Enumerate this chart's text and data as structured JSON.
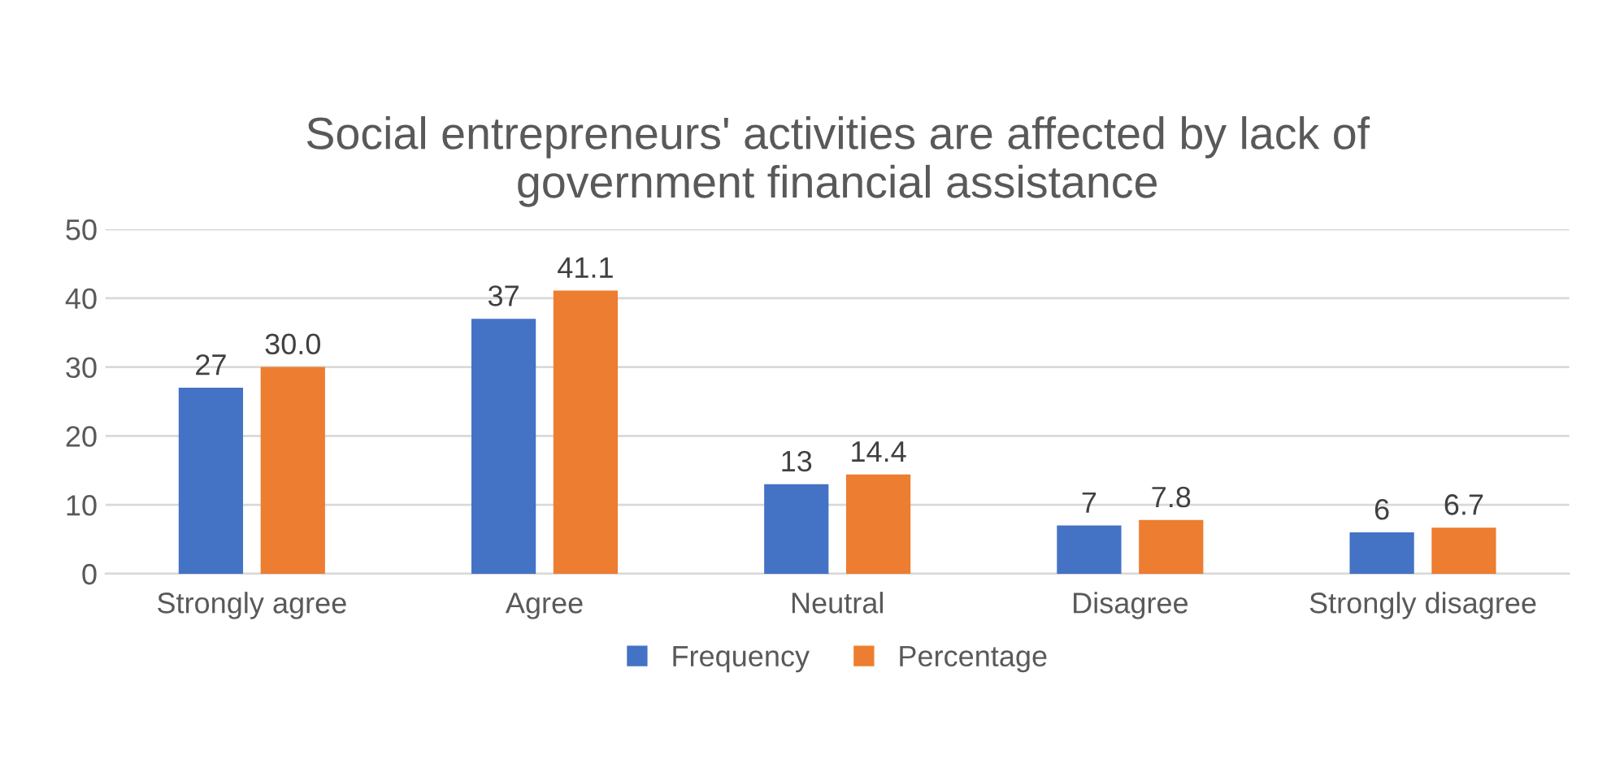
{
  "chart_data": {
    "type": "bar",
    "title": "Social entrepreneurs' activities are affected by lack of\ngovernment financial assistance",
    "categories": [
      "Strongly agree",
      "Agree",
      "Neutral",
      "Disagree",
      "Strongly disagree"
    ],
    "series": [
      {
        "name": "Frequency",
        "color": "#4472c4",
        "values": [
          27,
          37,
          13,
          7,
          6
        ],
        "value_labels": [
          "27",
          "37",
          "13",
          "7",
          "6"
        ]
      },
      {
        "name": "Percentage",
        "color": "#ed7d31",
        "values": [
          30.0,
          41.1,
          14.4,
          7.8,
          6.7
        ],
        "value_labels": [
          "30.0",
          "41.1",
          "14.4",
          "7.8",
          "6.7"
        ]
      }
    ],
    "ylim": [
      0,
      50
    ],
    "yticks": [
      0,
      10,
      20,
      30,
      40,
      50
    ],
    "grid": "y",
    "legend": "bottom"
  }
}
